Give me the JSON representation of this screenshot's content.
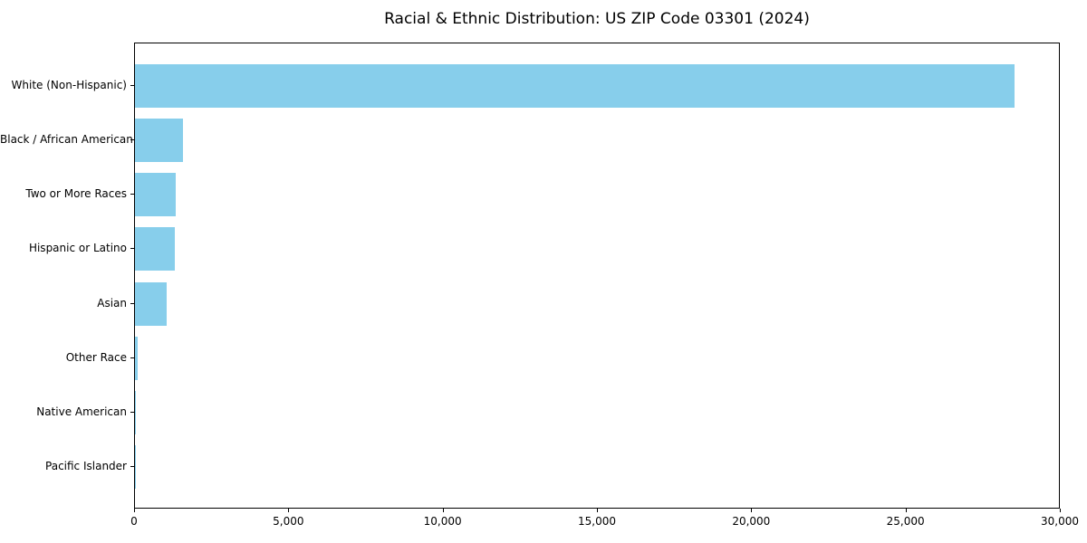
{
  "chart_data": {
    "type": "bar",
    "orientation": "horizontal",
    "title": "Racial & Ethnic Distribution: US ZIP Code 03301 (2024)",
    "categories": [
      "White (Non-Hispanic)",
      "Black / African American",
      "Two or More Races",
      "Hispanic or Latino",
      "Asian",
      "Other Race",
      "Native American",
      "Pacific Islander"
    ],
    "values": [
      28500,
      1560,
      1320,
      1300,
      1040,
      100,
      40,
      10
    ],
    "xlabel": "",
    "ylabel": "",
    "xlim": [
      0,
      30000
    ],
    "xticks": [
      0,
      5000,
      10000,
      15000,
      20000,
      25000,
      30000
    ],
    "xtick_labels": [
      "0",
      "5,000",
      "10,000",
      "15,000",
      "20,000",
      "25,000",
      "30,000"
    ],
    "bar_color": "#87CEEB",
    "grid": false,
    "legend": null
  }
}
